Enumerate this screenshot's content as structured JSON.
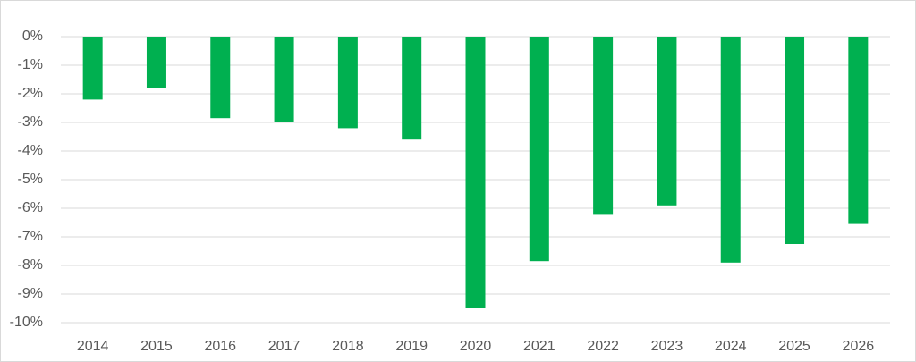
{
  "chart_data": {
    "type": "bar",
    "categories": [
      "2014",
      "2015",
      "2016",
      "2017",
      "2018",
      "2019",
      "2020",
      "2021",
      "2022",
      "2023",
      "2024",
      "2025",
      "2026"
    ],
    "values": [
      -2.2,
      -1.8,
      -2.85,
      -3.0,
      -3.2,
      -3.6,
      -9.5,
      -7.85,
      -6.2,
      -5.9,
      -7.9,
      -7.25,
      -6.55
    ],
    "color": "#00b050",
    "ylim": [
      -10,
      0
    ],
    "yticks": [
      {
        "value": 0,
        "label": "0%"
      },
      {
        "value": -1,
        "label": "-1%"
      },
      {
        "value": -2,
        "label": "-2%"
      },
      {
        "value": -3,
        "label": "-3%"
      },
      {
        "value": -4,
        "label": "-4%"
      },
      {
        "value": -5,
        "label": "-5%"
      },
      {
        "value": -6,
        "label": "-6%"
      },
      {
        "value": -7,
        "label": "-7%"
      },
      {
        "value": -8,
        "label": "-8%"
      },
      {
        "value": -9,
        "label": "-9%"
      },
      {
        "value": -10,
        "label": "-10%"
      }
    ],
    "grid": true
  }
}
